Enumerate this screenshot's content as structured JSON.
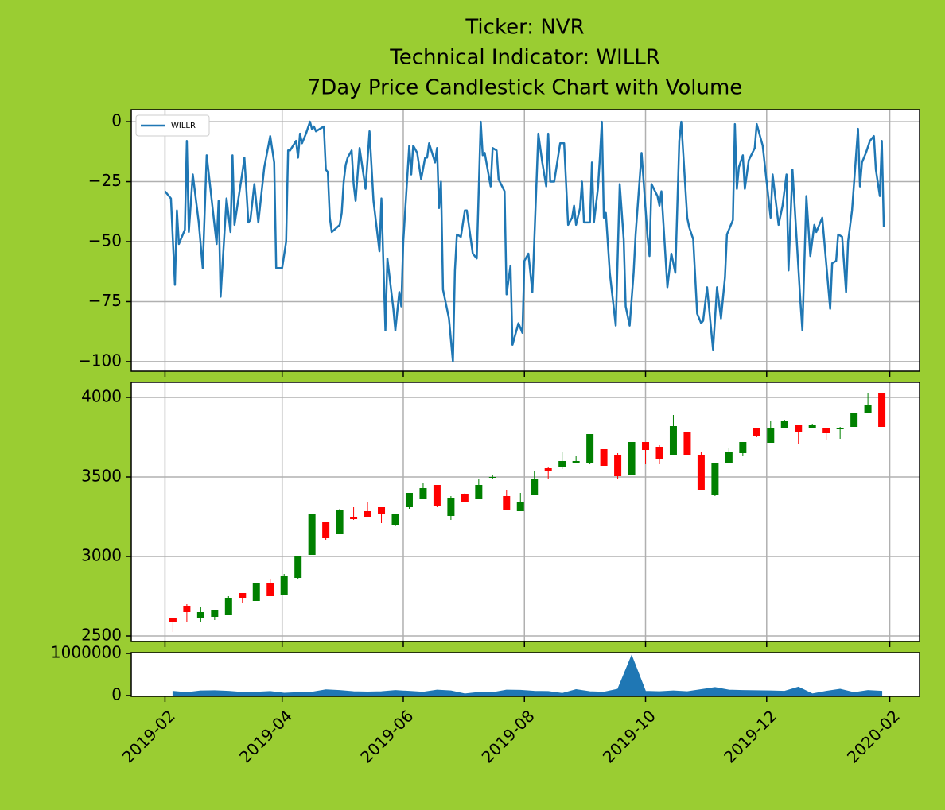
{
  "chart_data": [
    {
      "type": "line",
      "title": [
        "Ticker: NVR",
        "Technical Indicator: WILLR",
        "7Day Price Candlestick Chart with Volume"
      ],
      "x": [
        "2019-02-01",
        "2019-02-04",
        "2019-02-06",
        "2019-02-07",
        "2019-02-08",
        "2019-02-11",
        "2019-02-12",
        "2019-02-13",
        "2019-02-15",
        "2019-02-18",
        "2019-02-20",
        "2019-02-22",
        "2019-02-27",
        "2019-02-28",
        "2019-03-01",
        "2019-03-04",
        "2019-03-06",
        "2019-03-07",
        "2019-03-08",
        "2019-03-12",
        "2019-03-13",
        "2019-03-15",
        "2019-03-16",
        "2019-03-18",
        "2019-03-20",
        "2019-03-23",
        "2019-03-26",
        "2019-03-28",
        "2019-03-29",
        "2019-04-01",
        "2019-04-03",
        "2019-04-04",
        "2019-04-05",
        "2019-04-08",
        "2019-04-09",
        "2019-04-10",
        "2019-04-11",
        "2019-04-13",
        "2019-04-15",
        "2019-04-16",
        "2019-04-17",
        "2019-04-18",
        "2019-04-22",
        "2019-04-23",
        "2019-04-24",
        "2019-04-25",
        "2019-04-26",
        "2019-04-30",
        "2019-05-01",
        "2019-05-02",
        "2019-05-03",
        "2019-05-04",
        "2019-05-06",
        "2019-05-07",
        "2019-05-08",
        "2019-05-10",
        "2019-05-13",
        "2019-05-15",
        "2019-05-17",
        "2019-05-20",
        "2019-05-21",
        "2019-05-23",
        "2019-05-24",
        "2019-05-27",
        "2019-05-28",
        "2019-05-30",
        "2019-05-31",
        "2019-06-01",
        "2019-06-04",
        "2019-06-05",
        "2019-06-06",
        "2019-06-08",
        "2019-06-10",
        "2019-06-12",
        "2019-06-13",
        "2019-06-14",
        "2019-06-17",
        "2019-06-18",
        "2019-06-19",
        "2019-06-20",
        "2019-06-21",
        "2019-06-24",
        "2019-06-26",
        "2019-06-27",
        "2019-06-28",
        "2019-06-30",
        "2019-07-02",
        "2019-07-03",
        "2019-07-06",
        "2019-07-08",
        "2019-07-10",
        "2019-07-11",
        "2019-07-12",
        "2019-07-15",
        "2019-07-16",
        "2019-07-18",
        "2019-07-19",
        "2019-07-22",
        "2019-07-23",
        "2019-07-25",
        "2019-07-26",
        "2019-07-29",
        "2019-07-31",
        "2019-08-01",
        "2019-08-03",
        "2019-08-05",
        "2019-08-08",
        "2019-08-10",
        "2019-08-12",
        "2019-08-13",
        "2019-08-14",
        "2019-08-16",
        "2019-08-19",
        "2019-08-21",
        "2019-08-23",
        "2019-08-25",
        "2019-08-26",
        "2019-08-27",
        "2019-08-29",
        "2019-08-30",
        "2019-08-31",
        "2019-09-03",
        "2019-09-04",
        "2019-09-05",
        "2019-09-07",
        "2019-09-08",
        "2019-09-09",
        "2019-09-10",
        "2019-09-11",
        "2019-09-13",
        "2019-09-16",
        "2019-09-18",
        "2019-09-20",
        "2019-09-21",
        "2019-09-23",
        "2019-09-25",
        "2019-09-26",
        "2019-09-29",
        "2019-10-02",
        "2019-10-03",
        "2019-10-04",
        "2019-10-07",
        "2019-10-08",
        "2019-10-09",
        "2019-10-12",
        "2019-10-14",
        "2019-10-16",
        "2019-10-18",
        "2019-10-19",
        "2019-10-22",
        "2019-10-23",
        "2019-10-25",
        "2019-10-27",
        "2019-10-29",
        "2019-10-30",
        "2019-11-01",
        "2019-11-04",
        "2019-11-06",
        "2019-11-08",
        "2019-11-10",
        "2019-11-11",
        "2019-11-14",
        "2019-11-15",
        "2019-11-16",
        "2019-11-17",
        "2019-11-19",
        "2019-11-20",
        "2019-11-22",
        "2019-11-25",
        "2019-11-26",
        "2019-11-28",
        "2019-11-29",
        "2019-12-03",
        "2019-12-04",
        "2019-12-07",
        "2019-12-09",
        "2019-12-11",
        "2019-12-12",
        "2019-12-14",
        "2019-12-18",
        "2019-12-19",
        "2019-12-21",
        "2019-12-23",
        "2019-12-25",
        "2019-12-26",
        "2019-12-29",
        "2020-01-02",
        "2020-01-03",
        "2020-01-05",
        "2020-01-06",
        "2020-01-08",
        "2020-01-10",
        "2020-01-11",
        "2020-01-13",
        "2020-01-16",
        "2020-01-17",
        "2020-01-18",
        "2020-01-20",
        "2020-01-22",
        "2020-01-24",
        "2020-01-25",
        "2020-01-27",
        "2020-01-28",
        "2020-01-29"
      ],
      "series": [
        {
          "name": "WILLR",
          "color": "#1f77b4",
          "values": [
            -29,
            -32,
            -68,
            -37,
            -51,
            -45,
            -8,
            -46,
            -22,
            -42,
            -61,
            -14,
            -51,
            -33,
            -73,
            -32,
            -46,
            -14,
            -43,
            -21,
            -15,
            -42,
            -41,
            -26,
            -42,
            -19,
            -6,
            -17,
            -61,
            -61,
            -50,
            -12,
            -12,
            -8,
            -15,
            -5,
            -9,
            -5,
            0,
            -3,
            -2,
            -4,
            -2,
            -20,
            -21,
            -40,
            -46,
            -43,
            -38,
            -25,
            -18,
            -15,
            -12,
            -26,
            -33,
            -11,
            -28,
            -4,
            -33,
            -54,
            -32,
            -87,
            -57,
            -78,
            -87,
            -71,
            -77,
            -50,
            -10,
            -22,
            -10,
            -13,
            -24,
            -15,
            -15,
            -9,
            -17,
            -11,
            -36,
            -25,
            -70,
            -82,
            -100,
            -62,
            -47,
            -48,
            -37,
            -37,
            -55,
            -57,
            0,
            -14,
            -13,
            -27,
            -11,
            -12,
            -24,
            -29,
            -72,
            -60,
            -93,
            -84,
            -88,
            -58,
            -55,
            -71,
            -5,
            -17,
            -27,
            -5,
            -25,
            -25,
            -9,
            -9,
            -43,
            -40,
            -35,
            -43,
            -36,
            -25,
            -42,
            -42,
            -17,
            -42,
            -28,
            -15,
            0,
            -40,
            -38,
            -63,
            -85,
            -26,
            -49,
            -77,
            -85,
            -63,
            -47,
            -13,
            -48,
            -56,
            -26,
            -31,
            -35,
            -29,
            -69,
            -55,
            -63,
            -8,
            0,
            -40,
            -44,
            -49,
            -80,
            -84,
            -83,
            -69,
            -95,
            -69,
            -82,
            -65,
            -47,
            -41,
            -1,
            -28,
            -19,
            -14,
            -28,
            -16,
            -11,
            -1,
            -7,
            -10,
            -40,
            -22,
            -43,
            -35,
            -22,
            -62,
            -20,
            -75,
            -87,
            -31,
            -56,
            -43,
            -46,
            -40,
            -78,
            -59,
            -58,
            -47,
            -48,
            -71,
            -50,
            -37,
            -3,
            -27,
            -17,
            -13,
            -8,
            -6,
            -20,
            -31,
            -8,
            -44
          ]
        }
      ],
      "ylim": [
        -104,
        5
      ],
      "yticks": [
        {
          "value": -100,
          "label": "−100"
        },
        {
          "value": -75,
          "label": "−75"
        },
        {
          "value": -50,
          "label": "−50"
        },
        {
          "value": -25,
          "label": "−25"
        },
        0
      ],
      "grid": true,
      "legend": "upper left"
    },
    {
      "type": "candlestick",
      "x": [
        "2019-02-05",
        "2019-02-12",
        "2019-02-19",
        "2019-02-26",
        "2019-03-05",
        "2019-03-12",
        "2019-03-19",
        "2019-03-26",
        "2019-04-02",
        "2019-04-09",
        "2019-04-16",
        "2019-04-23",
        "2019-04-30",
        "2019-05-07",
        "2019-05-14",
        "2019-05-21",
        "2019-05-28",
        "2019-06-04",
        "2019-06-11",
        "2019-06-18",
        "2019-06-25",
        "2019-07-02",
        "2019-07-09",
        "2019-07-16",
        "2019-07-23",
        "2019-07-30",
        "2019-08-06",
        "2019-08-13",
        "2019-08-20",
        "2019-08-27",
        "2019-09-03",
        "2019-09-10",
        "2019-09-17",
        "2019-09-24",
        "2019-10-01",
        "2019-10-08",
        "2019-10-15",
        "2019-10-22",
        "2019-10-29",
        "2019-11-05",
        "2019-11-12",
        "2019-11-19",
        "2019-11-26",
        "2019-12-03",
        "2019-12-10",
        "2019-12-17",
        "2019-12-24",
        "2019-12-31",
        "2020-01-07",
        "2020-01-14",
        "2020-01-21",
        "2020-01-28"
      ],
      "open": [
        2610,
        2690,
        2610,
        2620,
        2630,
        2770,
        2720,
        2830,
        2760,
        2865,
        3010,
        3215,
        3140,
        3250,
        3285,
        3310,
        3200,
        3310,
        3360,
        3450,
        3255,
        3395,
        3360,
        3495,
        3380,
        3285,
        3385,
        3555,
        3565,
        3590,
        3590,
        3675,
        3640,
        3515,
        3720,
        3690,
        3640,
        3780,
        3640,
        3385,
        3585,
        3650,
        3810,
        3715,
        3810,
        3825,
        3810,
        3810,
        3800,
        3815,
        3900,
        4030
      ],
      "high": [
        2610,
        2700,
        2680,
        2660,
        2750,
        2770,
        2830,
        2860,
        2890,
        3000,
        3270,
        3215,
        3300,
        3310,
        3340,
        3310,
        3265,
        3400,
        3460,
        3450,
        3380,
        3400,
        3490,
        3510,
        3420,
        3400,
        3540,
        3560,
        3660,
        3630,
        3770,
        3675,
        3650,
        3720,
        3720,
        3700,
        3890,
        3780,
        3660,
        3590,
        3685,
        3720,
        3810,
        3850,
        3860,
        3825,
        3830,
        3810,
        3815,
        3905,
        4030,
        4030
      ],
      "low": [
        2525,
        2590,
        2590,
        2600,
        2630,
        2710,
        2720,
        2750,
        2760,
        2860,
        3010,
        3105,
        3140,
        3230,
        3250,
        3210,
        3190,
        3300,
        3360,
        3310,
        3230,
        3340,
        3360,
        3490,
        3295,
        3285,
        3385,
        3490,
        3550,
        3590,
        3580,
        3570,
        3490,
        3515,
        3580,
        3580,
        3640,
        3640,
        3420,
        3380,
        3585,
        3630,
        3750,
        3715,
        3810,
        3710,
        3810,
        3735,
        3740,
        3815,
        3900,
        3815
      ],
      "close": [
        2590,
        2650,
        2650,
        2660,
        2740,
        2740,
        2830,
        2750,
        2880,
        3000,
        3270,
        3115,
        3295,
        3235,
        3250,
        3265,
        3265,
        3400,
        3430,
        3320,
        3365,
        3340,
        3450,
        3500,
        3295,
        3345,
        3490,
        3540,
        3600,
        3600,
        3770,
        3570,
        3505,
        3720,
        3670,
        3615,
        3820,
        3640,
        3420,
        3590,
        3655,
        3720,
        3755,
        3810,
        3855,
        3785,
        3825,
        3775,
        3810,
        3900,
        3950,
        3815
      ],
      "up_color": "green",
      "down_color": "red",
      "ylim": [
        2465,
        4095
      ],
      "yticks": [
        2500,
        3000,
        3500,
        4000
      ],
      "grid": true
    },
    {
      "type": "area",
      "x": [
        "2019-02-05",
        "2019-02-12",
        "2019-02-19",
        "2019-02-26",
        "2019-03-05",
        "2019-03-12",
        "2019-03-19",
        "2019-03-26",
        "2019-04-02",
        "2019-04-09",
        "2019-04-16",
        "2019-04-23",
        "2019-04-30",
        "2019-05-07",
        "2019-05-14",
        "2019-05-21",
        "2019-05-28",
        "2019-06-04",
        "2019-06-11",
        "2019-06-18",
        "2019-06-25",
        "2019-07-02",
        "2019-07-09",
        "2019-07-16",
        "2019-07-23",
        "2019-07-30",
        "2019-08-06",
        "2019-08-13",
        "2019-08-20",
        "2019-08-27",
        "2019-09-03",
        "2019-09-10",
        "2019-09-17",
        "2019-09-24",
        "2019-10-01",
        "2019-10-08",
        "2019-10-15",
        "2019-10-22",
        "2019-10-29",
        "2019-11-05",
        "2019-11-12",
        "2019-11-19",
        "2019-11-26",
        "2019-12-03",
        "2019-12-10",
        "2019-12-17",
        "2019-12-24",
        "2019-12-31",
        "2020-01-07",
        "2020-01-14",
        "2020-01-21",
        "2020-01-28"
      ],
      "values": [
        100000,
        70000,
        110000,
        115000,
        100000,
        75000,
        80000,
        95000,
        55000,
        70000,
        80000,
        135000,
        120000,
        90000,
        85000,
        90000,
        120000,
        100000,
        80000,
        130000,
        110000,
        40000,
        75000,
        70000,
        130000,
        125000,
        100000,
        95000,
        50000,
        140000,
        90000,
        80000,
        150000,
        950000,
        100000,
        90000,
        110000,
        90000,
        140000,
        190000,
        130000,
        120000,
        115000,
        110000,
        100000,
        200000,
        40000,
        100000,
        150000,
        70000,
        120000,
        100000
      ],
      "color": "#1f77b4",
      "ylim": [
        -20000,
        1020000
      ],
      "yticks": [
        0,
        1000000
      ],
      "xlim": [
        "2019-01-15",
        "2020-02-16"
      ],
      "xticks": [
        {
          "value": "2019-02-01",
          "label": "2019-02"
        },
        {
          "value": "2019-04-01",
          "label": "2019-04"
        },
        {
          "value": "2019-06-01",
          "label": "2019-06"
        },
        {
          "value": "2019-08-01",
          "label": "2019-08"
        },
        {
          "value": "2019-10-01",
          "label": "2019-10"
        },
        {
          "value": "2019-12-01",
          "label": "2019-12"
        },
        {
          "value": "2020-02-01",
          "label": "2020-02"
        }
      ]
    }
  ]
}
